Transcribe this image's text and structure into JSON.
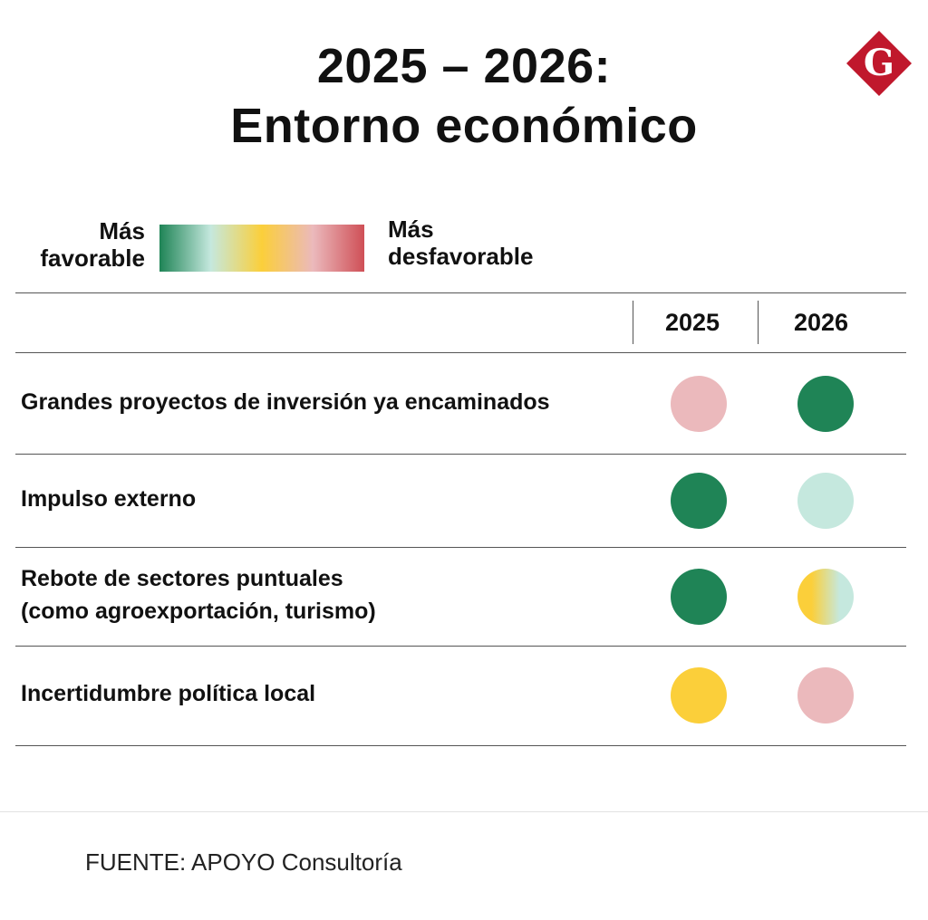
{
  "title_line1": "2025 – 2026:",
  "title_line2": "Entorno económico",
  "legend": {
    "left_line1": "Más",
    "left_line2": "favorable",
    "right_line1": "Más",
    "right_line2": "desfavorable",
    "gradient": [
      "#1f8456",
      "#c5e8de",
      "#fbcf3a",
      "#ebb9bc",
      "#cf4f56"
    ]
  },
  "logo_icon": "g-diamond-logo",
  "logo_letter": "G",
  "logo_color": "#c0182c",
  "source": "FUENTE: APOYO Consultoría",
  "chart_data": {
    "type": "table",
    "columns": [
      "2025",
      "2026"
    ],
    "scale": [
      "Más favorable",
      "Más desfavorable"
    ],
    "rows": [
      {
        "label_lines": [
          "Grandes proyectos de inversión ya encaminados"
        ],
        "cells": [
          {
            "colors": [
              "#ebb9bc"
            ]
          },
          {
            "colors": [
              "#1f8456"
            ]
          }
        ]
      },
      {
        "label_lines": [
          "Impulso externo"
        ],
        "cells": [
          {
            "colors": [
              "#1f8456"
            ]
          },
          {
            "colors": [
              "#c5e8de"
            ]
          }
        ]
      },
      {
        "label_lines": [
          "Rebote de sectores puntuales",
          "(como agroexportación, turismo)"
        ],
        "cells": [
          {
            "colors": [
              "#1f8456"
            ]
          },
          {
            "colors": [
              "#fbcf3a",
              "#c5e8de"
            ]
          }
        ]
      },
      {
        "label_lines": [
          "Incertidumbre política local"
        ],
        "cells": [
          {
            "colors": [
              "#fbcf3a"
            ]
          },
          {
            "colors": [
              "#ebb9bc"
            ]
          }
        ]
      }
    ]
  }
}
